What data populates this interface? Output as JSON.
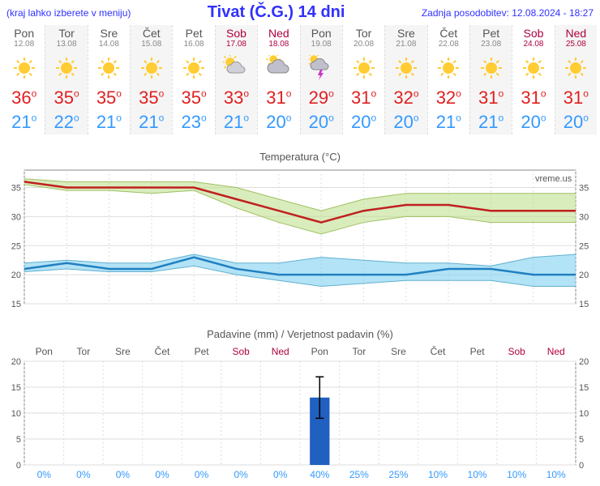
{
  "header": {
    "left_note": "(kraj lahko izberete v meniju)",
    "title": "Tivat (Č.G.) 14 dni",
    "right_note": "Zadnja posodobitev: 12.08.2024 - 18:27"
  },
  "days": [
    {
      "name": "Pon",
      "date": "12.08",
      "icon": "sun",
      "hi": 36,
      "lo": 21,
      "weekend": false,
      "alt": false
    },
    {
      "name": "Tor",
      "date": "13.08",
      "icon": "sun",
      "hi": 35,
      "lo": 22,
      "weekend": false,
      "alt": true
    },
    {
      "name": "Sre",
      "date": "14.08",
      "icon": "sun",
      "hi": 35,
      "lo": 21,
      "weekend": false,
      "alt": false
    },
    {
      "name": "Čet",
      "date": "15.08",
      "icon": "sun",
      "hi": 35,
      "lo": 21,
      "weekend": false,
      "alt": true
    },
    {
      "name": "Pet",
      "date": "16.08",
      "icon": "sun",
      "hi": 35,
      "lo": 23,
      "weekend": false,
      "alt": false
    },
    {
      "name": "Sob",
      "date": "17.08",
      "icon": "sun-cloud",
      "hi": 33,
      "lo": 21,
      "weekend": true,
      "alt": true
    },
    {
      "name": "Ned",
      "date": "18.08",
      "icon": "cloud",
      "hi": 31,
      "lo": 20,
      "weekend": true,
      "alt": false
    },
    {
      "name": "Pon",
      "date": "19.08",
      "icon": "storm",
      "hi": 29,
      "lo": 20,
      "weekend": false,
      "alt": true
    },
    {
      "name": "Tor",
      "date": "20.08",
      "icon": "sun",
      "hi": 31,
      "lo": 20,
      "weekend": false,
      "alt": false
    },
    {
      "name": "Sre",
      "date": "21.08",
      "icon": "sun",
      "hi": 32,
      "lo": 20,
      "weekend": false,
      "alt": true
    },
    {
      "name": "Čet",
      "date": "22.08",
      "icon": "sun",
      "hi": 32,
      "lo": 21,
      "weekend": false,
      "alt": false
    },
    {
      "name": "Pet",
      "date": "23.08",
      "icon": "sun",
      "hi": 31,
      "lo": 21,
      "weekend": false,
      "alt": true
    },
    {
      "name": "Sob",
      "date": "24.08",
      "icon": "sun",
      "hi": 31,
      "lo": 20,
      "weekend": true,
      "alt": false
    },
    {
      "name": "Ned",
      "date": "25.08",
      "icon": "sun",
      "hi": 31,
      "lo": 20,
      "weekend": true,
      "alt": true
    }
  ],
  "temp_chart": {
    "title": "Temperatura (°C)",
    "watermark": "vreme.us",
    "ylim": [
      15,
      38
    ],
    "ytick_step": 5,
    "hi_series": [
      36,
      35,
      35,
      35,
      35,
      33,
      31,
      29,
      31,
      32,
      32,
      31,
      31,
      31
    ],
    "hi_band_top": [
      36.5,
      36,
      36,
      36,
      36,
      35,
      33,
      31,
      33,
      34,
      34,
      34,
      34,
      34
    ],
    "hi_band_bot": [
      35.5,
      34.5,
      34.5,
      34,
      34.5,
      31.5,
      29,
      27,
      29,
      30,
      30,
      29,
      29,
      29
    ],
    "lo_series": [
      21,
      22,
      21,
      21,
      23,
      21,
      20,
      20,
      20,
      20,
      21,
      21,
      20,
      20
    ],
    "lo_band_top": [
      22,
      22.5,
      22,
      22,
      23.5,
      22,
      22,
      23,
      22.5,
      22,
      22,
      21.5,
      23,
      23.5
    ],
    "lo_band_bot": [
      20.5,
      21,
      20.5,
      20.5,
      21.5,
      20,
      19,
      18,
      18.5,
      19,
      19,
      19,
      18,
      18
    ],
    "colors": {
      "hi_line": "#c02020",
      "hi_band": "#c0e090",
      "lo_line": "#2080c0",
      "lo_band": "#80d0f0",
      "grid": "#dddddd",
      "frame": "#888888"
    }
  },
  "precip_chart": {
    "title": "Padavine (mm) / Verjetnost padavin (%)",
    "ylim": [
      0,
      20
    ],
    "ytick_step": 5,
    "bars_mm": [
      0,
      0,
      0,
      0,
      0,
      0,
      0,
      13,
      0,
      0,
      0,
      0,
      0,
      0
    ],
    "err_top": [
      0,
      0,
      0,
      0,
      0,
      0,
      0,
      17,
      0,
      0,
      0,
      0,
      0,
      0
    ],
    "err_bot": [
      0,
      0,
      0,
      0,
      0,
      0,
      0,
      9,
      0,
      0,
      0,
      0,
      0,
      0
    ],
    "prob_pct": [
      0,
      0,
      0,
      0,
      0,
      0,
      0,
      40,
      25,
      25,
      10,
      10,
      10,
      10
    ],
    "colors": {
      "bar": "#2060c0",
      "grid": "#dddddd",
      "frame": "#888888",
      "prob": "#3399ff"
    }
  }
}
